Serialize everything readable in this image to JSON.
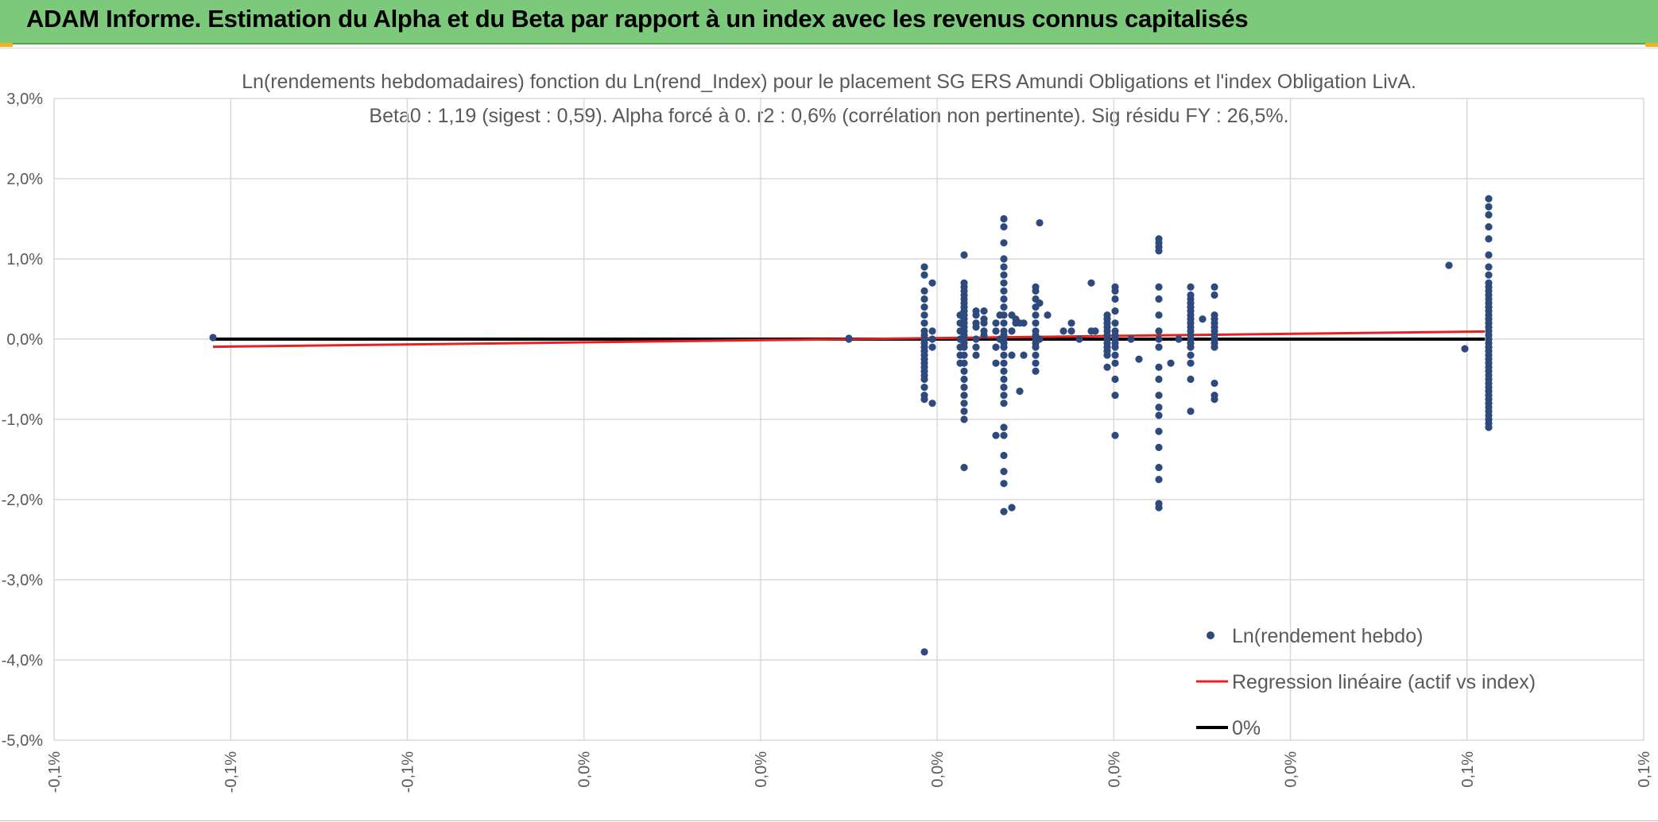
{
  "banner": {
    "title": "ADAM Informe. Estimation du Alpha et du Beta par rapport à un index avec les revenus connus capitalisés",
    "background_color": "#7cc97b"
  },
  "chart_data": {
    "type": "scatter",
    "title_line1": "Ln(rendements hebdomadaires) fonction du Ln(rend_Index) pour le placement SG ERS Amundi Obligations et l'index Obligation LivA.",
    "title_line2": "Beta0 : 1,19 (sigest : 0,59). Alpha forcé à 0. r2 : 0,6% (corrélation non pertinente). Sig résidu FY : 26,5%.",
    "y_ticks": [
      "3,0%",
      "2,0%",
      "1,0%",
      "0,0%",
      "-1,0%",
      "-2,0%",
      "-3,0%",
      "-4,0%",
      "-5,0%"
    ],
    "x_ticks": [
      "-0,1%",
      "-0,1%",
      "-0,1%",
      "0,0%",
      "0,0%",
      "0,0%",
      "0,0%",
      "0,0%",
      "0,1%",
      "0,1%"
    ],
    "xlim": [
      -0.1,
      0.1
    ],
    "ylim": [
      -5.0,
      3.0
    ],
    "legend": {
      "scatter": "Ln(rendement hebdo)",
      "regression": "Regression linéaire (actif vs index)",
      "zero": "0%"
    },
    "colors": {
      "scatter": "#2e4a7d",
      "regression": "#e8211f",
      "zero": "#000000",
      "grid": "#d9d9d9"
    },
    "regression_beta": 1.19,
    "regression_x_range": [
      -0.08,
      0.08
    ],
    "zero_line_x_range": [
      -0.08,
      0.08
    ],
    "scatter_groups": [
      {
        "x": -0.08,
        "y": [
          0.02
        ]
      },
      {
        "x": 0.0,
        "y": [
          0.0,
          0.01
        ]
      },
      {
        "x": 0.0095,
        "y": [
          0.9,
          0.8,
          0.6,
          0.5,
          0.4,
          0.3,
          0.2,
          0.1,
          0.05,
          0.0,
          -0.05,
          -0.1,
          -0.15,
          -0.2,
          -0.25,
          -0.3,
          -0.35,
          -0.4,
          -0.45,
          -0.5,
          -0.6,
          -0.7,
          -0.75,
          -3.9
        ]
      },
      {
        "x": 0.0105,
        "y": [
          0.7,
          0.1,
          0.0,
          -0.1,
          -0.8
        ]
      },
      {
        "x": 0.014,
        "y": [
          0.3,
          0.2,
          0.1,
          0.0,
          -0.1,
          -0.2,
          -0.3
        ]
      },
      {
        "x": 0.0145,
        "y": [
          1.05,
          0.7,
          0.65,
          0.6,
          0.55,
          0.5,
          0.45,
          0.4,
          0.35,
          0.3,
          0.25,
          0.2,
          0.15,
          0.1,
          0.05,
          0.0,
          -0.05,
          -0.1,
          -0.2,
          -0.3,
          -0.4,
          -0.5,
          -0.6,
          -0.7,
          -0.8,
          -0.9,
          -1.0,
          -1.6
        ]
      },
      {
        "x": 0.016,
        "y": [
          0.35,
          0.3,
          0.2,
          0.15,
          0.0,
          -0.1,
          -0.2
        ]
      },
      {
        "x": 0.017,
        "y": [
          0.35,
          0.25,
          0.2,
          0.1,
          0.05
        ]
      },
      {
        "x": 0.0185,
        "y": [
          0.2,
          0.1,
          -0.1,
          -0.3,
          -1.2
        ]
      },
      {
        "x": 0.019,
        "y": [
          0.3,
          0.0
        ]
      },
      {
        "x": 0.0195,
        "y": [
          1.5,
          1.4,
          1.2,
          1.0,
          0.9,
          0.8,
          0.7,
          0.6,
          0.5,
          0.4,
          0.3,
          0.2,
          0.1,
          0.05,
          0.0,
          -0.05,
          -0.1,
          -0.2,
          -0.3,
          -0.4,
          -0.5,
          -0.6,
          -0.7,
          -0.8,
          -1.1,
          -1.2,
          -1.45,
          -1.65,
          -1.8,
          -2.15
        ]
      },
      {
        "x": 0.0205,
        "y": [
          0.3,
          0.1,
          -0.2,
          -2.1
        ]
      },
      {
        "x": 0.021,
        "y": [
          0.25,
          0.2
        ]
      },
      {
        "x": 0.0215,
        "y": [
          0.2,
          -0.65
        ]
      },
      {
        "x": 0.022,
        "y": [
          0.2,
          -0.2
        ]
      },
      {
        "x": 0.0235,
        "y": [
          0.65,
          0.6,
          0.5,
          0.4,
          0.3,
          0.2,
          0.1,
          0.05,
          0.0,
          -0.05,
          -0.1,
          -0.2,
          -0.3,
          -0.4
        ]
      },
      {
        "x": 0.024,
        "y": [
          1.45,
          0.45,
          0.0
        ]
      },
      {
        "x": 0.025,
        "y": [
          0.3
        ]
      },
      {
        "x": 0.027,
        "y": [
          0.1
        ]
      },
      {
        "x": 0.028,
        "y": [
          0.2,
          0.1
        ]
      },
      {
        "x": 0.029,
        "y": [
          0.0
        ]
      },
      {
        "x": 0.0305,
        "y": [
          0.7,
          0.1
        ]
      },
      {
        "x": 0.031,
        "y": [
          0.1
        ]
      },
      {
        "x": 0.0325,
        "y": [
          0.3,
          0.25,
          0.2,
          0.15,
          0.1,
          0.05,
          0.0,
          -0.05,
          -0.1,
          -0.15,
          -0.2,
          -0.35
        ]
      },
      {
        "x": 0.0335,
        "y": [
          0.65,
          0.6,
          0.5,
          0.35,
          0.2,
          0.1,
          0.05,
          0.0,
          -0.05,
          -0.1,
          -0.2,
          -0.3,
          -0.5,
          -0.7,
          -1.2
        ]
      },
      {
        "x": 0.0355,
        "y": [
          0.0
        ]
      },
      {
        "x": 0.0365,
        "y": [
          -0.25
        ]
      },
      {
        "x": 0.039,
        "y": [
          1.25,
          1.2,
          1.15,
          1.1,
          0.65,
          0.5,
          0.3,
          0.1,
          0.0,
          -0.1,
          -0.35,
          -0.5,
          -0.7,
          -0.85,
          -0.95,
          -1.15,
          -1.35,
          -1.6,
          -1.75,
          -2.05,
          -2.1
        ]
      },
      {
        "x": 0.0405,
        "y": [
          -0.3
        ]
      },
      {
        "x": 0.0415,
        "y": [
          0.0
        ]
      },
      {
        "x": 0.043,
        "y": [
          0.65,
          0.55,
          0.5,
          0.45,
          0.4,
          0.35,
          0.3,
          0.25,
          0.2,
          0.15,
          0.1,
          0.05,
          0.0,
          -0.05,
          -0.1,
          -0.2,
          -0.3,
          -0.5,
          -0.9
        ]
      },
      {
        "x": 0.0445,
        "y": [
          0.25
        ]
      },
      {
        "x": 0.046,
        "y": [
          0.65,
          0.55,
          0.3,
          0.25,
          0.2,
          0.15,
          0.1,
          0.05,
          0.0,
          -0.05,
          -0.1,
          -0.55,
          -0.7,
          -0.75
        ]
      },
      {
        "x": 0.0755,
        "y": [
          0.92
        ]
      },
      {
        "x": 0.0775,
        "y": [
          -0.12
        ]
      },
      {
        "x": 0.0805,
        "y": [
          1.75,
          1.65,
          1.55,
          1.4,
          1.25,
          1.05,
          0.9,
          0.8,
          0.7,
          0.65,
          0.6,
          0.55,
          0.5,
          0.45,
          0.4,
          0.35,
          0.3,
          0.25,
          0.2,
          0.15,
          0.1,
          0.05,
          0.0,
          -0.05,
          -0.1,
          -0.15,
          -0.2,
          -0.25,
          -0.3,
          -0.35,
          -0.4,
          -0.45,
          -0.5,
          -0.55,
          -0.6,
          -0.65,
          -0.7,
          -0.75,
          -0.8,
          -0.85,
          -0.9,
          -0.95,
          -1.0,
          -1.05,
          -1.1
        ]
      }
    ]
  }
}
